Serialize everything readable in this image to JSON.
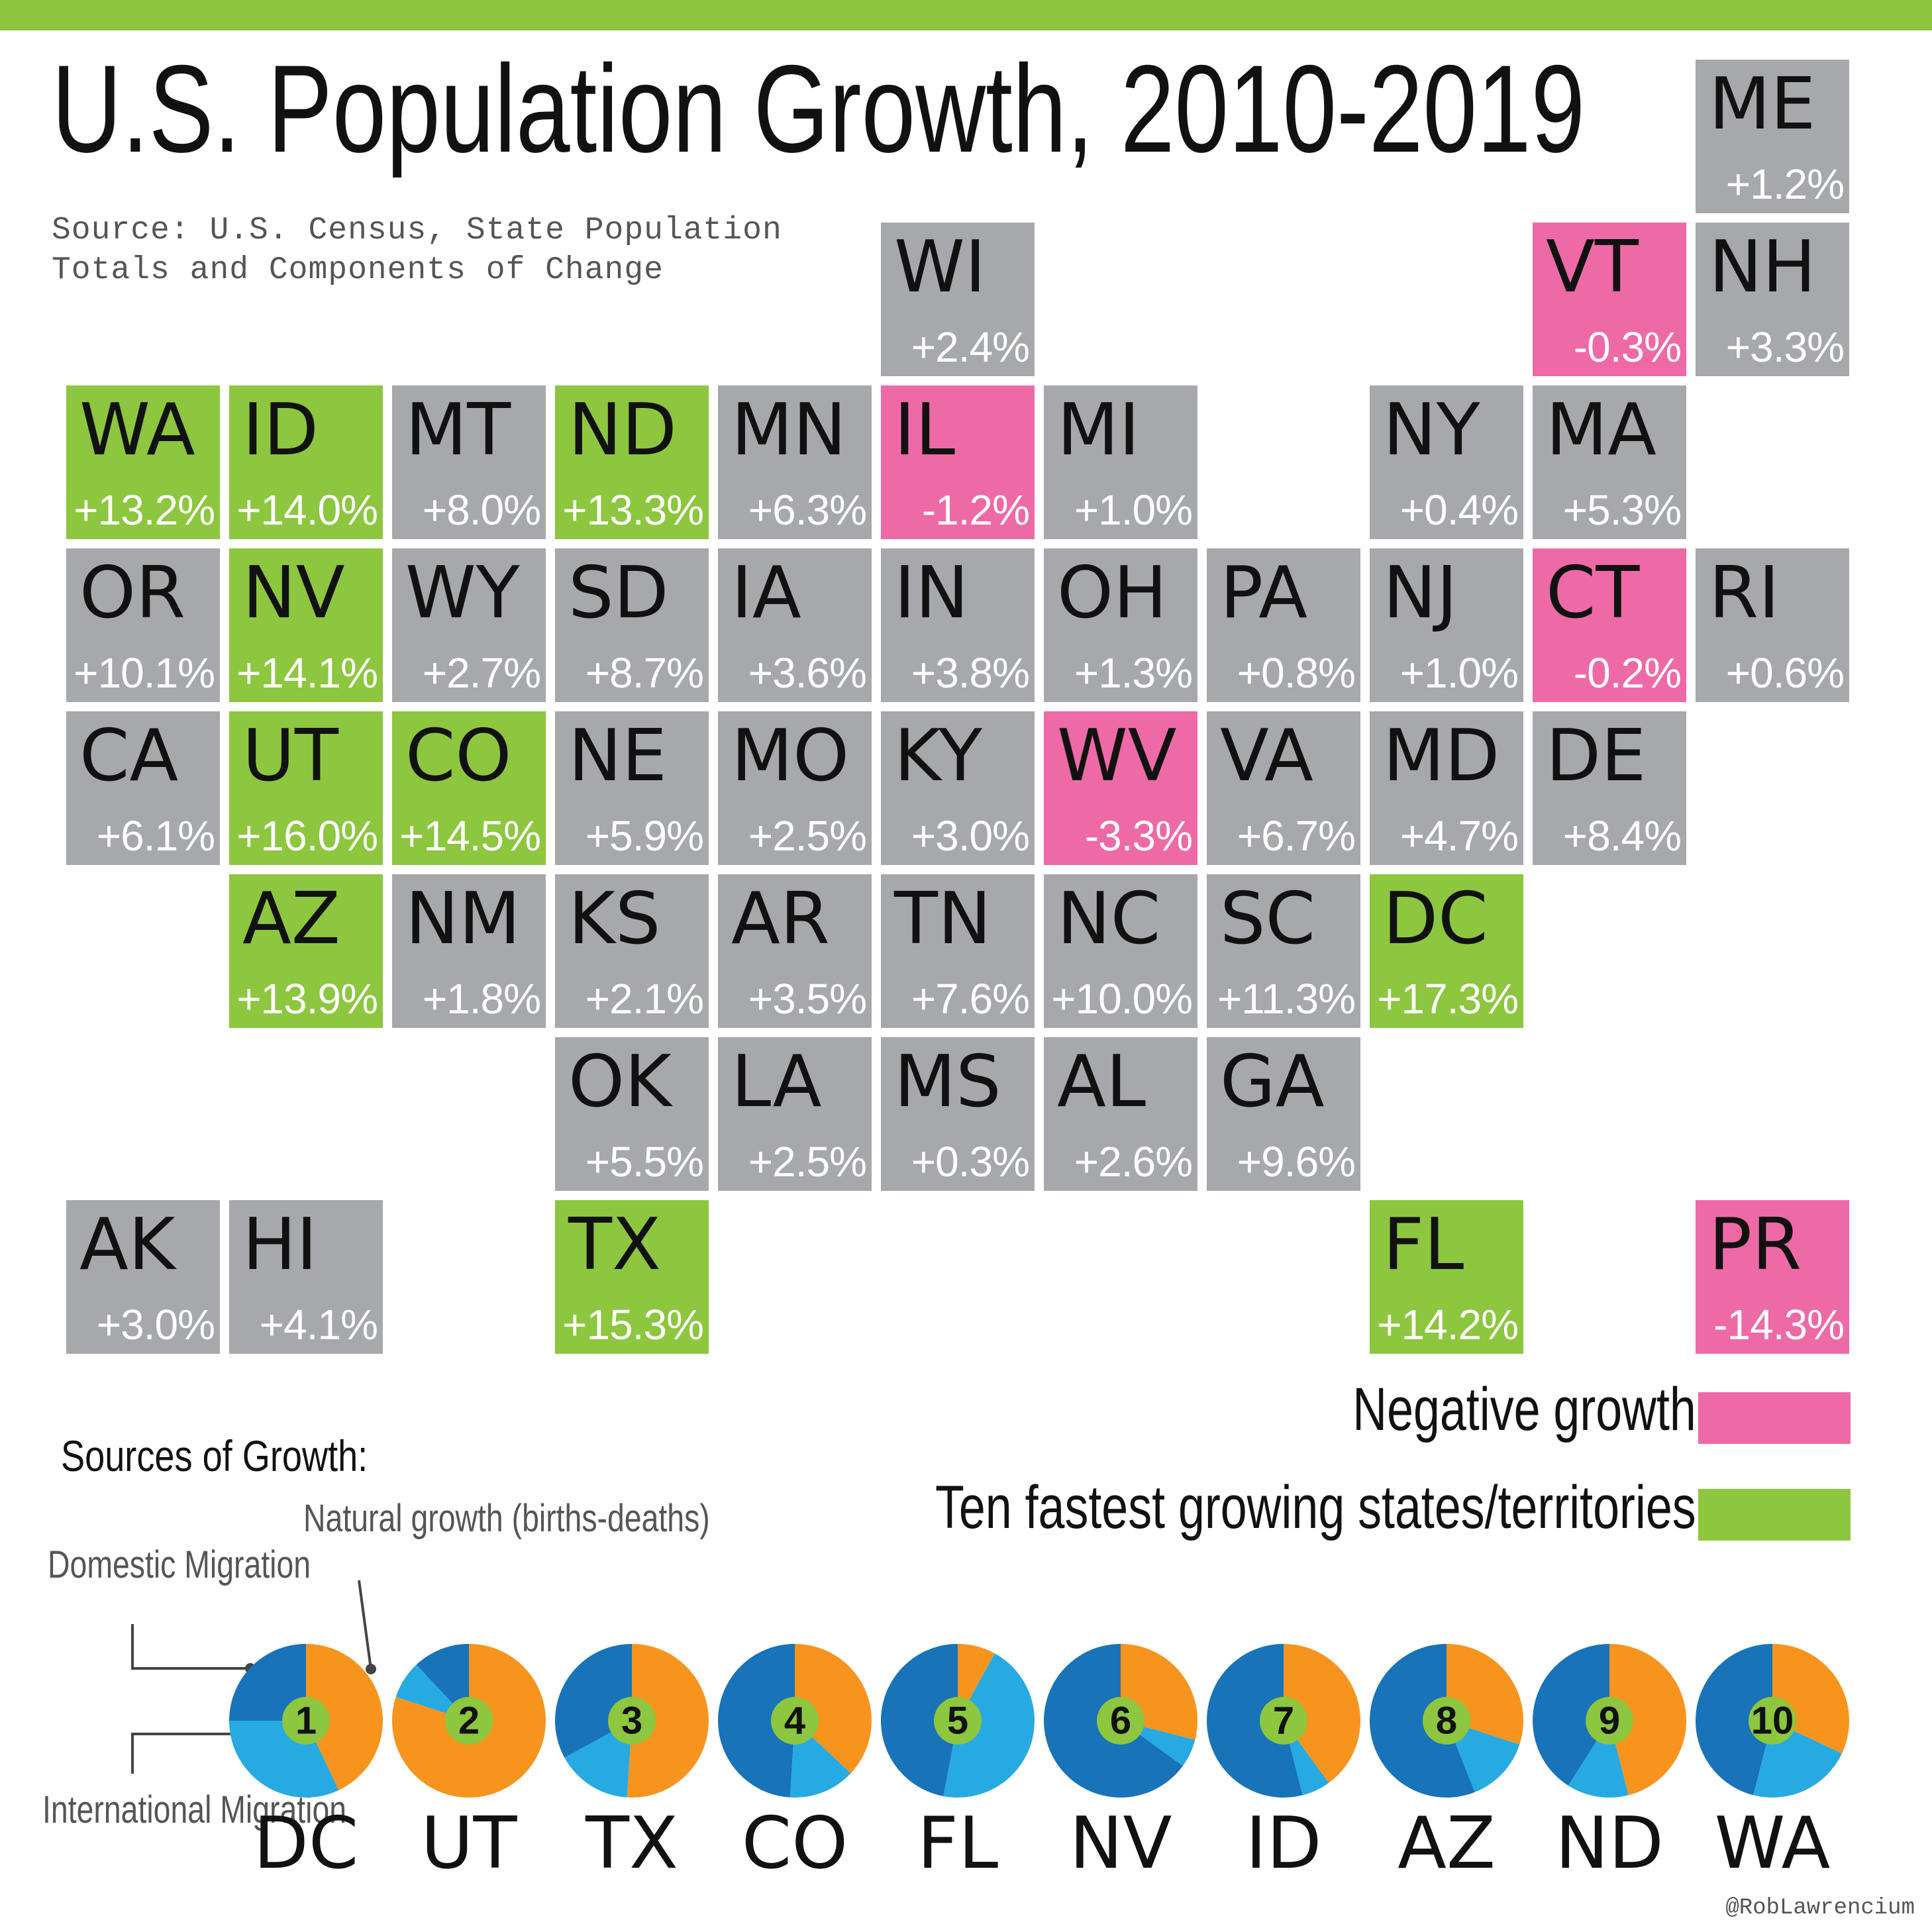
{
  "title": "U.S. Population  Growth, 2010-2019",
  "source": "Source: U.S. Census, State Population Totals and Components of Change",
  "colors": {
    "neutral": "#a7a8ab",
    "negative": "#ee6aa7",
    "top_ten": "#8dc63f",
    "domestic": "#1873b8",
    "international": "#27aae1",
    "natural": "#f7941d"
  },
  "legend": {
    "negative": "Negative growth",
    "top_ten": "Ten fastest growing states/territories"
  },
  "sources_title": "Sources of Growth:",
  "annotations": {
    "domestic": "Domestic Migration",
    "natural": "Natural growth (births-deaths)",
    "international": "International Migration"
  },
  "credit": "@RobLawrencium",
  "chart_data": [
    {
      "type": "tile-map",
      "tiles": [
        {
          "state": "ME",
          "growth": "+1.2%",
          "row": 0,
          "col": 10,
          "category": "neutral"
        },
        {
          "state": "WI",
          "growth": "+2.4%",
          "row": 1,
          "col": 5,
          "category": "neutral"
        },
        {
          "state": "VT",
          "growth": "-0.3%",
          "row": 1,
          "col": 9,
          "category": "negative"
        },
        {
          "state": "NH",
          "growth": "+3.3%",
          "row": 1,
          "col": 10,
          "category": "neutral"
        },
        {
          "state": "WA",
          "growth": "+13.2%",
          "row": 2,
          "col": 0,
          "category": "top_ten"
        },
        {
          "state": "ID",
          "growth": "+14.0%",
          "row": 2,
          "col": 1,
          "category": "top_ten"
        },
        {
          "state": "MT",
          "growth": "+8.0%",
          "row": 2,
          "col": 2,
          "category": "neutral"
        },
        {
          "state": "ND",
          "growth": "+13.3%",
          "row": 2,
          "col": 3,
          "category": "top_ten"
        },
        {
          "state": "MN",
          "growth": "+6.3%",
          "row": 2,
          "col": 4,
          "category": "neutral"
        },
        {
          "state": "IL",
          "growth": "-1.2%",
          "row": 2,
          "col": 5,
          "category": "negative"
        },
        {
          "state": "MI",
          "growth": "+1.0%",
          "row": 2,
          "col": 6,
          "category": "neutral"
        },
        {
          "state": "NY",
          "growth": "+0.4%",
          "row": 2,
          "col": 8,
          "category": "neutral"
        },
        {
          "state": "MA",
          "growth": "+5.3%",
          "row": 2,
          "col": 9,
          "category": "neutral"
        },
        {
          "state": "OR",
          "growth": "+10.1%",
          "row": 3,
          "col": 0,
          "category": "neutral"
        },
        {
          "state": "NV",
          "growth": "+14.1%",
          "row": 3,
          "col": 1,
          "category": "top_ten"
        },
        {
          "state": "WY",
          "growth": "+2.7%",
          "row": 3,
          "col": 2,
          "category": "neutral"
        },
        {
          "state": "SD",
          "growth": "+8.7%",
          "row": 3,
          "col": 3,
          "category": "neutral"
        },
        {
          "state": "IA",
          "growth": "+3.6%",
          "row": 3,
          "col": 4,
          "category": "neutral"
        },
        {
          "state": "IN",
          "growth": "+3.8%",
          "row": 3,
          "col": 5,
          "category": "neutral"
        },
        {
          "state": "OH",
          "growth": "+1.3%",
          "row": 3,
          "col": 6,
          "category": "neutral"
        },
        {
          "state": "PA",
          "growth": "+0.8%",
          "row": 3,
          "col": 7,
          "category": "neutral"
        },
        {
          "state": "NJ",
          "growth": "+1.0%",
          "row": 3,
          "col": 8,
          "category": "neutral"
        },
        {
          "state": "CT",
          "growth": "-0.2%",
          "row": 3,
          "col": 9,
          "category": "negative"
        },
        {
          "state": "RI",
          "growth": "+0.6%",
          "row": 3,
          "col": 10,
          "category": "neutral"
        },
        {
          "state": "CA",
          "growth": "+6.1%",
          "row": 4,
          "col": 0,
          "category": "neutral"
        },
        {
          "state": "UT",
          "growth": "+16.0%",
          "row": 4,
          "col": 1,
          "category": "top_ten"
        },
        {
          "state": "CO",
          "growth": "+14.5%",
          "row": 4,
          "col": 2,
          "category": "top_ten"
        },
        {
          "state": "NE",
          "growth": "+5.9%",
          "row": 4,
          "col": 3,
          "category": "neutral"
        },
        {
          "state": "MO",
          "growth": "+2.5%",
          "row": 4,
          "col": 4,
          "category": "neutral"
        },
        {
          "state": "KY",
          "growth": "+3.0%",
          "row": 4,
          "col": 5,
          "category": "neutral"
        },
        {
          "state": "WV",
          "growth": "-3.3%",
          "row": 4,
          "col": 6,
          "category": "negative"
        },
        {
          "state": "VA",
          "growth": "+6.7%",
          "row": 4,
          "col": 7,
          "category": "neutral"
        },
        {
          "state": "MD",
          "growth": "+4.7%",
          "row": 4,
          "col": 8,
          "category": "neutral"
        },
        {
          "state": "DE",
          "growth": "+8.4%",
          "row": 4,
          "col": 9,
          "category": "neutral"
        },
        {
          "state": "AZ",
          "growth": "+13.9%",
          "row": 5,
          "col": 1,
          "category": "top_ten"
        },
        {
          "state": "NM",
          "growth": "+1.8%",
          "row": 5,
          "col": 2,
          "category": "neutral"
        },
        {
          "state": "KS",
          "growth": "+2.1%",
          "row": 5,
          "col": 3,
          "category": "neutral"
        },
        {
          "state": "AR",
          "growth": "+3.5%",
          "row": 5,
          "col": 4,
          "category": "neutral"
        },
        {
          "state": "TN",
          "growth": "+7.6%",
          "row": 5,
          "col": 5,
          "category": "neutral"
        },
        {
          "state": "NC",
          "growth": "+10.0%",
          "row": 5,
          "col": 6,
          "category": "neutral"
        },
        {
          "state": "SC",
          "growth": "+11.3%",
          "row": 5,
          "col": 7,
          "category": "neutral"
        },
        {
          "state": "DC",
          "growth": "+17.3%",
          "row": 5,
          "col": 8,
          "category": "top_ten"
        },
        {
          "state": "OK",
          "growth": "+5.5%",
          "row": 6,
          "col": 3,
          "category": "neutral"
        },
        {
          "state": "LA",
          "growth": "+2.5%",
          "row": 6,
          "col": 4,
          "category": "neutral"
        },
        {
          "state": "MS",
          "growth": "+0.3%",
          "row": 6,
          "col": 5,
          "category": "neutral"
        },
        {
          "state": "AL",
          "growth": "+2.6%",
          "row": 6,
          "col": 6,
          "category": "neutral"
        },
        {
          "state": "GA",
          "growth": "+9.6%",
          "row": 6,
          "col": 7,
          "category": "neutral"
        },
        {
          "state": "AK",
          "growth": "+3.0%",
          "row": 7,
          "col": 0,
          "category": "neutral"
        },
        {
          "state": "HI",
          "growth": "+4.1%",
          "row": 7,
          "col": 1,
          "category": "neutral"
        },
        {
          "state": "TX",
          "growth": "+15.3%",
          "row": 7,
          "col": 3,
          "category": "top_ten"
        },
        {
          "state": "FL",
          "growth": "+14.2%",
          "row": 7,
          "col": 8,
          "category": "top_ten"
        },
        {
          "state": "PR",
          "growth": "-14.3%",
          "row": 7,
          "col": 10,
          "category": "negative"
        }
      ]
    },
    {
      "type": "pie",
      "title": "Sources of Growth:",
      "series_order": [
        "natural",
        "international",
        "domestic"
      ],
      "pies": [
        {
          "rank": "1",
          "state": "DC",
          "natural": 43,
          "international": 32,
          "domestic": 25
        },
        {
          "rank": "2",
          "state": "UT",
          "natural": 80,
          "international": 8,
          "domestic": 12
        },
        {
          "rank": "3",
          "state": "TX",
          "natural": 51,
          "international": 16,
          "domestic": 33
        },
        {
          "rank": "4",
          "state": "CO",
          "natural": 37,
          "international": 14,
          "domestic": 49
        },
        {
          "rank": "5",
          "state": "FL",
          "natural": 8,
          "international": 45,
          "domestic": 47
        },
        {
          "rank": "6",
          "state": "NV",
          "natural": 29,
          "international": 6,
          "domestic": 65
        },
        {
          "rank": "7",
          "state": "ID",
          "natural": 40,
          "international": 6,
          "domestic": 54
        },
        {
          "rank": "8",
          "state": "AZ",
          "natural": 30,
          "international": 14,
          "domestic": 56
        },
        {
          "rank": "9",
          "state": "ND",
          "natural": 46,
          "international": 13,
          "domestic": 41
        },
        {
          "rank": "10",
          "state": "WA",
          "natural": 32,
          "international": 22,
          "domestic": 46
        }
      ]
    }
  ]
}
